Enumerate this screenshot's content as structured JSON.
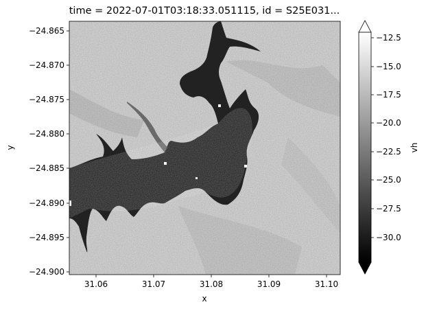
{
  "chart_data": {
    "type": "heatmap",
    "title": "time = 2022-07-01T03:18:33.051115, id = S25E031...",
    "xlabel": "x",
    "ylabel": "y",
    "xlim": [
      31.0535,
      31.1005
    ],
    "ylim": [
      -24.9003,
      -24.8638
    ],
    "x_ticks": [
      31.06,
      31.07,
      31.08,
      31.09,
      31.1
    ],
    "x_tick_labels": [
      "31.06",
      "31.07",
      "31.08",
      "31.09",
      "31.10"
    ],
    "y_ticks": [
      -24.865,
      -24.87,
      -24.875,
      -24.88,
      -24.885,
      -24.89,
      -24.895,
      -24.9
    ],
    "y_tick_labels": [
      "−24.865",
      "−24.870",
      "−24.875",
      "−24.880",
      "−24.885",
      "−24.890",
      "−24.895",
      "−24.900"
    ],
    "colorbar": {
      "label": "vh",
      "colormap": "gray",
      "range": [
        -32.0,
        -11.5
      ],
      "extend": "both",
      "ticks": [
        -12.5,
        -15.0,
        -17.5,
        -20.0,
        -22.5,
        -25.0,
        -27.5,
        -30.0
      ],
      "tick_labels": [
        "−12.5",
        "−15.0",
        "−17.5",
        "−20.0",
        "−22.5",
        "−25.0",
        "−27.5",
        "−30.0"
      ]
    },
    "regions": [
      {
        "name": "water body",
        "approx_vh": -30
      },
      {
        "name": "land",
        "approx_vh": -16
      }
    ],
    "grid": false,
    "colors": {
      "low": "#000000",
      "high": "#ffffff",
      "water": "#2a2a2a",
      "land": "#d8d8d8"
    }
  }
}
